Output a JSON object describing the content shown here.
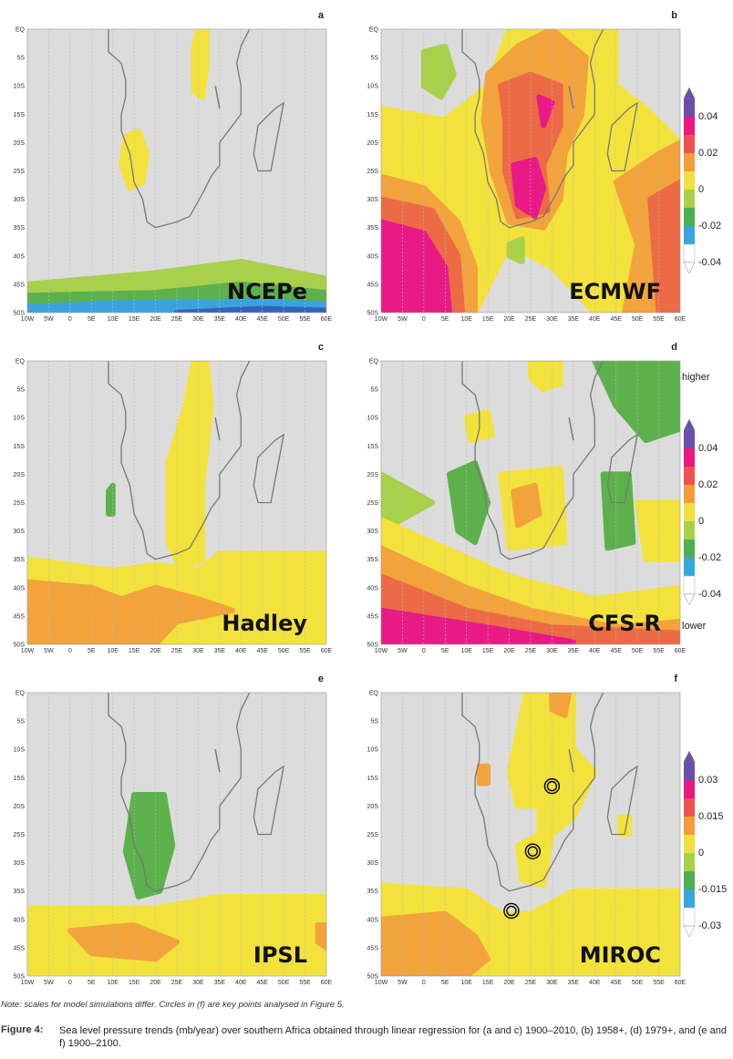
{
  "panels": [
    {
      "letter": "a",
      "model": "NCEPe"
    },
    {
      "letter": "b",
      "model": "ECMWF"
    },
    {
      "letter": "c",
      "model": "Hadley"
    },
    {
      "letter": "d",
      "model": "CFS-R"
    },
    {
      "letter": "e",
      "model": "IPSL"
    },
    {
      "letter": "f",
      "model": "MIROC"
    }
  ],
  "lat_labels": [
    "EQ",
    "5S",
    "10S",
    "15S",
    "20S",
    "25S",
    "30S",
    "35S",
    "40S",
    "45S",
    "50S"
  ],
  "lon_labels": [
    "10W",
    "5W",
    "0",
    "5E",
    "10E",
    "15E",
    "20E",
    "25E",
    "30E",
    "35E",
    "40E",
    "45E",
    "50E",
    "55E",
    "60E"
  ],
  "colorbars": [
    {
      "panel": "b",
      "ticks": [
        "0.04",
        "0.02",
        "0",
        "-0.02",
        "-0.04"
      ]
    },
    {
      "panel": "d",
      "top": "higher",
      "bottom": "lower",
      "ticks": [
        "0.04",
        "0.02",
        "0",
        "-0.02",
        "-0.04"
      ]
    },
    {
      "panel": "f",
      "ticks": [
        "0.03",
        "0.015",
        "0",
        "-0.015",
        "-0.03"
      ]
    }
  ],
  "note": "Note: scales for model simulations differ. Circles in (f) are key points analysed in Figure 5.",
  "caption": {
    "label": "Figure 4:",
    "text": "Sea level pressure trends (mb/year) over southern Africa obtained through linear regression for (a and c) 1900–2010, (b) 1958+, (d) 1979+, and (e and f) 1900–2100."
  }
}
